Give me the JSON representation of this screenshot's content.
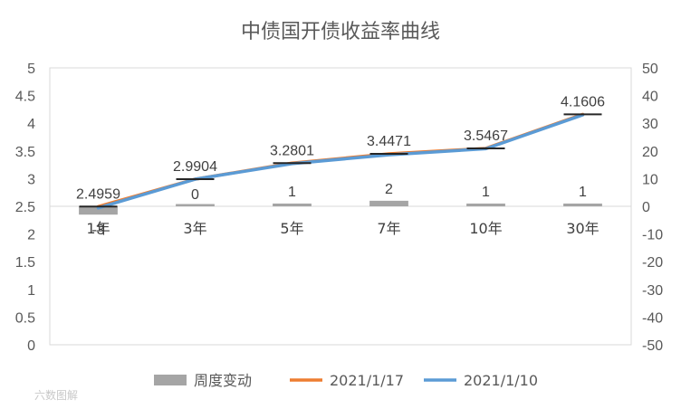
{
  "chart_data": {
    "type": "combo-bar-line",
    "title": "中债国开债收益率曲线",
    "categories": [
      "1年",
      "3年",
      "5年",
      "7年",
      "10年",
      "30年"
    ],
    "y_left": {
      "min": 0,
      "max": 5,
      "step": 0.5,
      "tick_labels": [
        "0",
        "0.5",
        "1",
        "1.5",
        "2",
        "2.5",
        "3",
        "3.5",
        "4",
        "4.5",
        "5"
      ]
    },
    "y_right": {
      "min": -50,
      "max": 50,
      "step": 10,
      "tick_labels": [
        "-50",
        "-40",
        "-30",
        "-20",
        "-10",
        "0",
        "10",
        "20",
        "30",
        "40",
        "50"
      ]
    },
    "series": [
      {
        "name": "周度变动",
        "kind": "bar",
        "axis": "right",
        "color": "#a5a5a5",
        "values": [
          -3,
          0,
          1,
          2,
          1,
          1
        ],
        "labels": [
          "-3",
          "0",
          "1",
          "2",
          "1",
          "1"
        ]
      },
      {
        "name": "2021/1/17",
        "kind": "line",
        "axis": "left",
        "color": "#ed7d31",
        "values": [
          2.4959,
          2.9904,
          3.2801,
          3.4471,
          3.5467,
          4.1606
        ],
        "labels": [
          "2.4959",
          "2.9904",
          "3.2801",
          "3.4471",
          "3.5467",
          "4.1606"
        ]
      },
      {
        "name": "2021/1/10",
        "kind": "line",
        "axis": "left",
        "color": "#5b9bd5",
        "values": [
          2.47,
          2.99,
          3.27,
          3.43,
          3.54,
          4.15
        ]
      }
    ],
    "legend_position": "bottom",
    "grid": false
  },
  "watermark": "六数图解"
}
